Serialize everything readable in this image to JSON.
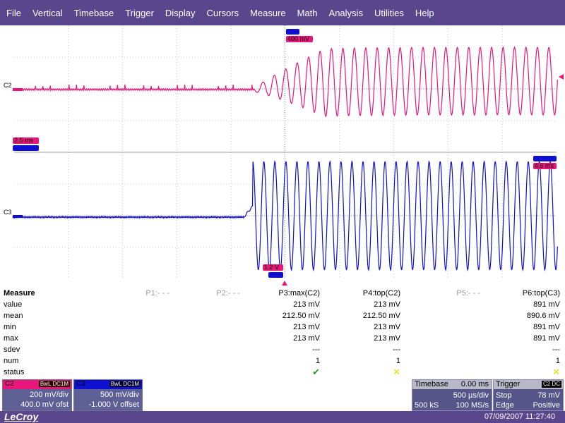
{
  "menu": [
    "File",
    "Vertical",
    "Timebase",
    "Trigger",
    "Display",
    "Cursors",
    "Measure",
    "Math",
    "Analysis",
    "Utilities",
    "Help"
  ],
  "colors": {
    "c2": "#e8157a",
    "c3": "#1010d0",
    "menu": "#5a468c",
    "grid": "#c8c8c8"
  },
  "scope": {
    "c2_label": "C2",
    "c3_label": "C3",
    "tag_c2_amp": "400 mV",
    "tag_c2_time": "2.5 ms",
    "tag_c3_time": "4.6 ms",
    "tag_c3_amp": "1.2 V"
  },
  "measure": {
    "title": "Measure",
    "headers": [
      "P1:- - -",
      "P2:- - -",
      "P3:max(C2)",
      "P4:top(C2)",
      "P5:- - -",
      "P6:top(C3)"
    ],
    "rows": [
      {
        "label": "value",
        "p3": "213 mV",
        "p4": "213 mV",
        "p6": "891 mV"
      },
      {
        "label": "mean",
        "p3": "212.50 mV",
        "p4": "212.50 mV",
        "p6": "890.6 mV"
      },
      {
        "label": "min",
        "p3": "213 mV",
        "p4": "213 mV",
        "p6": "891 mV"
      },
      {
        "label": "max",
        "p3": "213 mV",
        "p4": "213 mV",
        "p6": "891 mV"
      },
      {
        "label": "sdev",
        "p3": "---",
        "p4": "---",
        "p6": "---"
      },
      {
        "label": "num",
        "p3": "1",
        "p4": "1",
        "p6": "1"
      },
      {
        "label": "status",
        "p3": "✔",
        "p4": "✕",
        "p6": "✕"
      }
    ]
  },
  "c2_box": {
    "name": "C2",
    "mode": "BwL DC1M",
    "vdiv": "200 mV/div",
    "offset": "400.0 mV ofst"
  },
  "c3_box": {
    "name": "C3",
    "mode": "BwL DC1M",
    "vdiv": "500 mV/div",
    "offset": "-1.000 V offset"
  },
  "timebase": {
    "title": "Timebase",
    "delay": "0.00 ms",
    "tdiv": "500 µs/div",
    "samples": "500 kS",
    "rate": "100 MS/s"
  },
  "trigger": {
    "title": "Trigger",
    "badge": "C2 DC",
    "mode": "Stop",
    "level": "78 mV",
    "type": "Edge",
    "slope": "Positive"
  },
  "status": {
    "logo": "LeCroy",
    "datetime": "07/09/2007 11:27:40"
  }
}
